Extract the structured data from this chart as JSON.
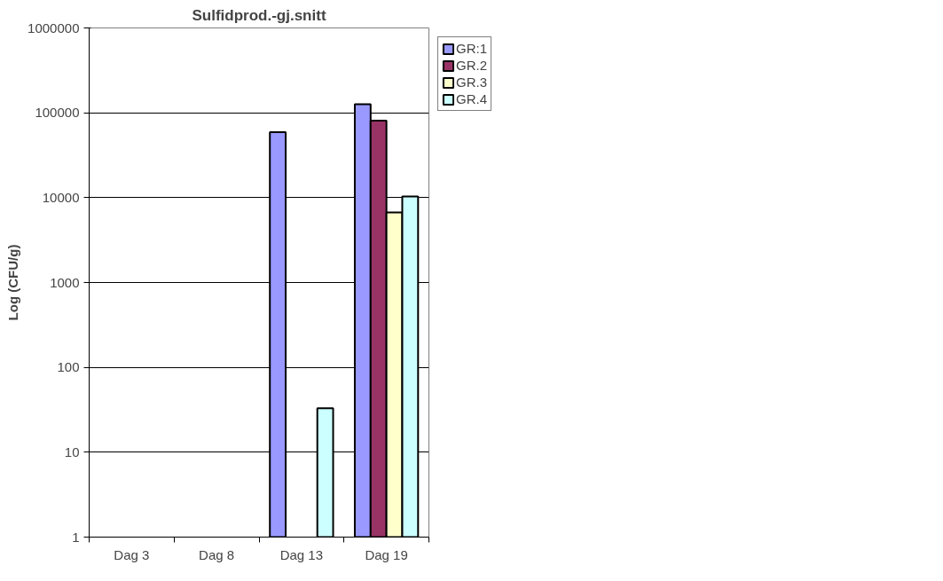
{
  "chart_data": {
    "type": "bar",
    "title": "Sulfidprod.-gj.snitt",
    "ylabel": "Log (CFU/g)",
    "categories": [
      "Dag 3",
      "Dag 8",
      "Dag 13",
      "Dag 19"
    ],
    "series": [
      {
        "name": "GR:1",
        "color": "#9999ff",
        "values": [
          null,
          null,
          59000,
          126000
        ]
      },
      {
        "name": "GR.2",
        "color": "#993366",
        "values": [
          null,
          null,
          null,
          81000
        ]
      },
      {
        "name": "GR.3",
        "color": "#ffffcc",
        "values": [
          null,
          null,
          null,
          6700
        ]
      },
      {
        "name": "GR.4",
        "color": "#ccffff",
        "values": [
          null,
          null,
          33,
          10300
        ]
      }
    ],
    "log": true,
    "ylim": [
      1,
      1000000
    ],
    "yticks": [
      1,
      10,
      100,
      1000,
      10000,
      100000,
      1000000
    ],
    "grid": "y",
    "legend": "right"
  }
}
